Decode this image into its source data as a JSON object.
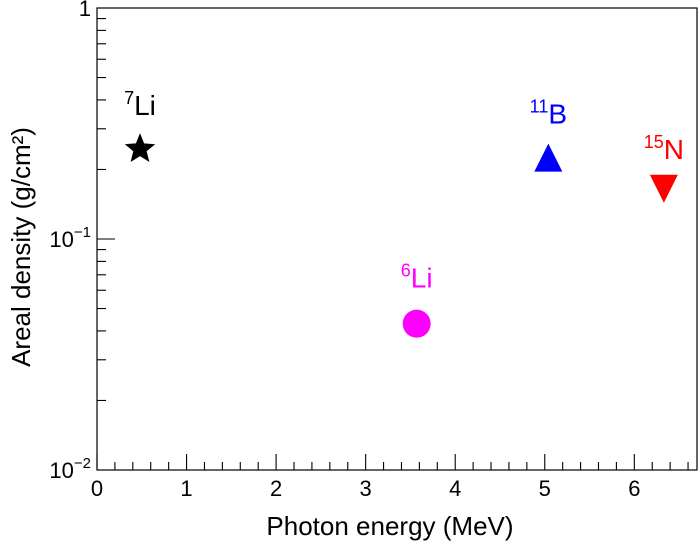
{
  "chart_data": {
    "type": "scatter",
    "xlabel": "Photon energy (MeV)",
    "ylabel": "Areal density (g/cm²)",
    "xlim": [
      0,
      6.7
    ],
    "ylim": [
      0.01,
      1
    ],
    "yscale": "log",
    "grid": false,
    "x_ticks": [
      "0",
      "1",
      "2",
      "3",
      "4",
      "5",
      "6"
    ],
    "y_ticks": [
      {
        "base": "10",
        "exp": "−2",
        "value": 0.01
      },
      {
        "base": "10",
        "exp": "−1",
        "value": 0.1
      },
      {
        "base": "1",
        "exp": "",
        "value": 1
      }
    ],
    "points": [
      {
        "mass": "7",
        "element": "Li",
        "x": 0.48,
        "y": 0.245,
        "marker": "star",
        "color": "#000000"
      },
      {
        "mass": "6",
        "element": "Li",
        "x": 3.57,
        "y": 0.043,
        "marker": "circle",
        "color": "#ff00ff"
      },
      {
        "mass": "11",
        "element": "B",
        "x": 5.04,
        "y": 0.225,
        "marker": "triangle-up",
        "color": "#0000ff"
      },
      {
        "mass": "15",
        "element": "N",
        "x": 6.33,
        "y": 0.165,
        "marker": "triangle-down",
        "color": "#ff0000"
      }
    ]
  }
}
